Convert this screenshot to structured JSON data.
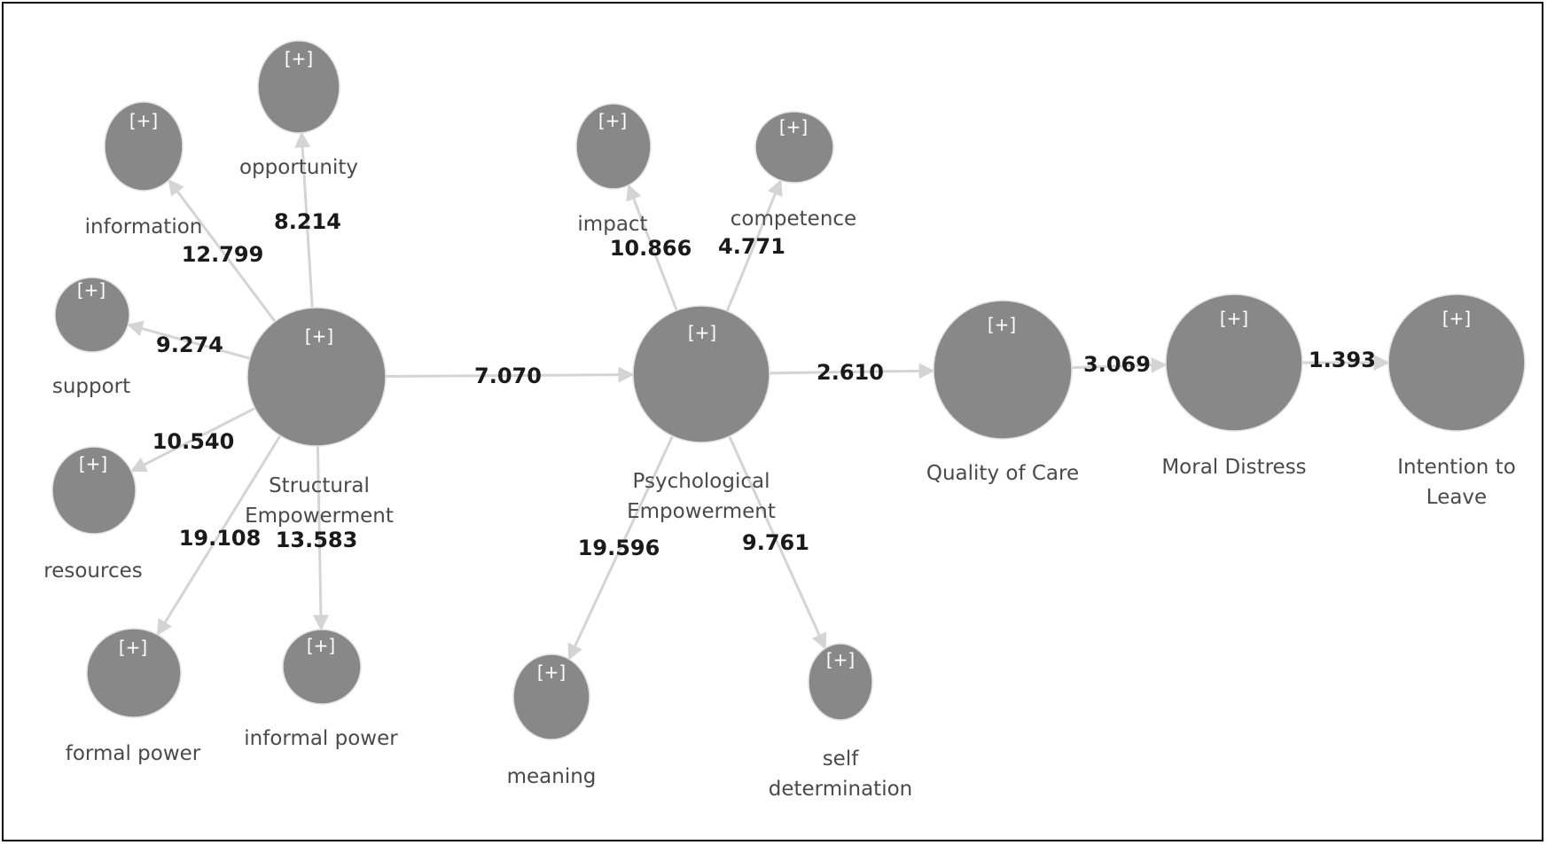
{
  "colors": {
    "node_fill": "#888888",
    "edge": "#d4d4d4",
    "label_text": "#4a4a4a",
    "coefficient_text": "#1a1a1a",
    "background": "#ffffff",
    "border": "#000000"
  },
  "expander_symbol": "[+]",
  "nodes": {
    "structural": {
      "label_lines": [
        "Structural",
        "Empowerment"
      ]
    },
    "psychological": {
      "label_lines": [
        "Psychological",
        "Empowerment"
      ]
    },
    "quality": {
      "label_lines": [
        "Quality of Care"
      ]
    },
    "moral": {
      "label_lines": [
        "Moral Distress"
      ]
    },
    "intention": {
      "label_lines": [
        "Intention to",
        "Leave"
      ]
    },
    "information": {
      "label_lines": [
        "information"
      ]
    },
    "opportunity": {
      "label_lines": [
        "opportunity"
      ]
    },
    "support": {
      "label_lines": [
        "support"
      ]
    },
    "resources": {
      "label_lines": [
        "resources"
      ]
    },
    "formal_power": {
      "label_lines": [
        "formal power"
      ]
    },
    "informal_power": {
      "label_lines": [
        "informal power"
      ]
    },
    "impact": {
      "label_lines": [
        "impact"
      ]
    },
    "competence": {
      "label_lines": [
        "competence"
      ]
    },
    "meaning": {
      "label_lines": [
        "meaning"
      ]
    },
    "self_determination": {
      "label_lines": [
        "self",
        "determination"
      ]
    }
  },
  "edges": [
    {
      "from": "structural",
      "to": "information",
      "value": "12.799"
    },
    {
      "from": "structural",
      "to": "opportunity",
      "value": "8.214"
    },
    {
      "from": "structural",
      "to": "support",
      "value": "9.274"
    },
    {
      "from": "structural",
      "to": "resources",
      "value": "10.540"
    },
    {
      "from": "structural",
      "to": "formal_power",
      "value": "19.108"
    },
    {
      "from": "structural",
      "to": "informal_power",
      "value": "13.583"
    },
    {
      "from": "structural",
      "to": "psychological",
      "value": "7.070"
    },
    {
      "from": "psychological",
      "to": "impact",
      "value": "10.866"
    },
    {
      "from": "psychological",
      "to": "competence",
      "value": "4.771"
    },
    {
      "from": "psychological",
      "to": "meaning",
      "value": "19.596"
    },
    {
      "from": "psychological",
      "to": "self_determination",
      "value": "9.761"
    },
    {
      "from": "psychological",
      "to": "quality",
      "value": "2.610"
    },
    {
      "from": "quality",
      "to": "moral",
      "value": "3.069"
    },
    {
      "from": "moral",
      "to": "intention",
      "value": "1.393"
    }
  ]
}
